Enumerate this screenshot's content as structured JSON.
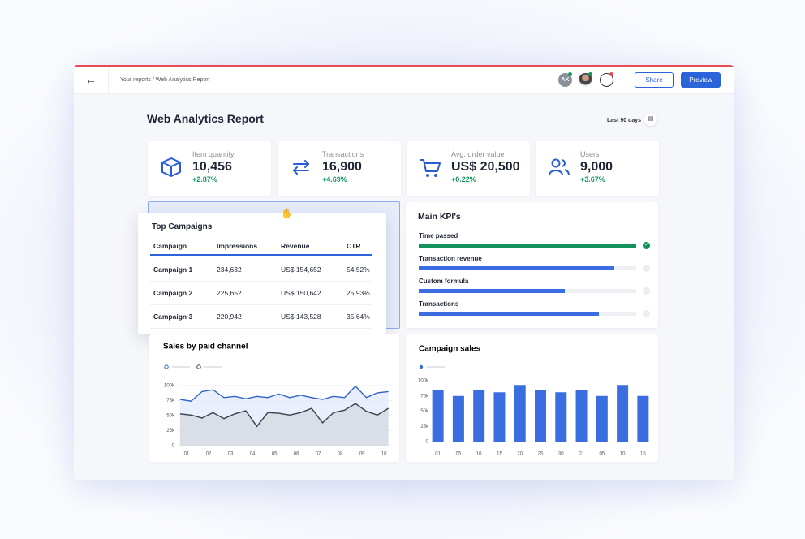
{
  "header": {
    "breadcrumb": "Your reports / Web Analytics Report",
    "avatar": "AK",
    "share": "Share",
    "preview": "Preview"
  },
  "report": {
    "title": "Web Analytics Report",
    "range": "Last 90 days"
  },
  "kpis": [
    {
      "label": "Item quantity",
      "value": "10,456",
      "change": "+2.87%"
    },
    {
      "label": "Transactions",
      "value": "16,900",
      "change": "+4.69%"
    },
    {
      "label": "Avg. order value",
      "value": "US$ 20,500",
      "change": "+0.22%"
    },
    {
      "label": "Users",
      "value": "9,000",
      "change": "+3.67%"
    }
  ],
  "table": {
    "title": "Top Campaigns",
    "columns": [
      "Campaign",
      "Impressions",
      "Revenue",
      "CTR"
    ],
    "rows": [
      [
        "Campaign 1",
        "234,632",
        "US$ 154,652",
        "54,52%"
      ],
      [
        "Campaign 2",
        "225,652",
        "US$ 150,642",
        "25,93%"
      ],
      [
        "Campaign 3",
        "220,942",
        "US$ 143,528",
        "35,64%"
      ]
    ]
  },
  "main_kpis": {
    "title": "Main KPI's",
    "items": [
      {
        "label": "Time passed",
        "progress": 100,
        "color": "#12935c"
      },
      {
        "label": "Transaction revenue",
        "progress": 90,
        "color": "#3a6ee0"
      },
      {
        "label": "Custom formula",
        "progress": 67,
        "color": "#3a6ee0"
      },
      {
        "label": "Transactions",
        "progress": 83,
        "color": "#3a6ee0"
      }
    ]
  },
  "chart_data": [
    {
      "type": "line",
      "title": "Sales by paid channel",
      "x": [
        0.7,
        1.2,
        1.7,
        2.2,
        2.7,
        3.2,
        3.7,
        4.2,
        4.7,
        5.2,
        5.7,
        6.2,
        6.7,
        7.2,
        7.7,
        8.2,
        8.7,
        9.2,
        9.7,
        10.2
      ],
      "xlim": [
        0,
        10.4
      ],
      "xticks": [
        {
          "value": 1,
          "label": "01"
        },
        {
          "value": 2,
          "label": "02"
        },
        {
          "value": 3,
          "label": "03"
        },
        {
          "value": 4,
          "label": "04"
        },
        {
          "value": 5,
          "label": "05"
        },
        {
          "value": 6,
          "label": "06"
        },
        {
          "value": 7,
          "label": "07"
        },
        {
          "value": 8,
          "label": "08"
        },
        {
          "value": 9,
          "label": "09"
        },
        {
          "value": 10,
          "label": "10"
        }
      ],
      "ylim": [
        0,
        100000
      ],
      "yticks": [
        0,
        {
          "value": 25000,
          "label": "25k"
        },
        {
          "value": 50000,
          "label": "50k"
        },
        {
          "value": 75000,
          "label": "75k"
        },
        {
          "value": 100000,
          "label": "100k"
        }
      ],
      "grid": true,
      "series": [
        {
          "color": "#2f63c9",
          "values": [
            77000,
            74000,
            90000,
            93000,
            80000,
            82000,
            78000,
            82000,
            80000,
            86000,
            80000,
            84000,
            80000,
            77000,
            82000,
            80000,
            99000,
            80000,
            88000,
            90000
          ]
        },
        {
          "color": "#3a3f4a",
          "values": [
            53000,
            51000,
            46000,
            55000,
            45000,
            53000,
            58000,
            32000,
            55000,
            54000,
            51000,
            55000,
            62000,
            38000,
            55000,
            59000,
            70000,
            57000,
            51000,
            62000
          ]
        }
      ]
    },
    {
      "type": "bar",
      "title": "Campaign sales",
      "color": "#3a6ee0",
      "categories": [
        "01",
        "05",
        "10",
        "15",
        "20",
        "25",
        "30",
        "01",
        "05",
        "10",
        "15"
      ],
      "values": [
        85000,
        75000,
        85000,
        81000,
        93000,
        85000,
        81000,
        85000,
        75000,
        93000,
        75000
      ],
      "ylim": [
        0,
        100000
      ],
      "yticks": [
        0,
        {
          "value": 25000,
          "label": "25k"
        },
        {
          "value": 50000,
          "label": "50k"
        },
        {
          "value": 75000,
          "label": "75k"
        },
        {
          "value": 100000,
          "label": "100k"
        }
      ],
      "grid": false
    }
  ]
}
